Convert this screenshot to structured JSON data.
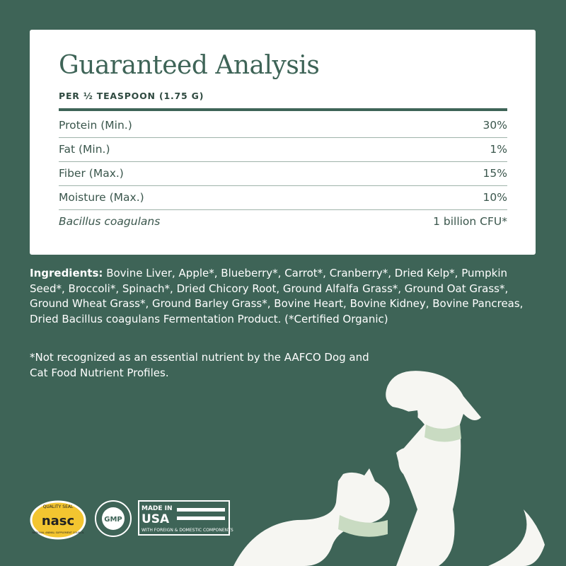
{
  "header": {
    "title": "Guaranteed Analysis",
    "subtitle": "PER ½ TEASPOON (1.75 G)"
  },
  "table": {
    "rows": [
      [
        "Protein (Min.)",
        "30%"
      ],
      [
        "Fat (Min.)",
        "1%"
      ],
      [
        "Fiber (Max.)",
        "15%"
      ],
      [
        "Moisture (Max.)",
        "10%"
      ],
      [
        "Bacillus coagulans",
        "1 billion CFU*"
      ]
    ]
  },
  "ingredients": {
    "label": "Ingredients:",
    "text": "Bovine Liver,  Apple*, Blueberry*, Carrot*, Cranberry*, Dried Kelp*, Pumpkin Seed*, Broccoli*, Spinach*, Dried Chicory Root, Ground Alfalfa Grass*, Ground Oat Grass*, Ground Wheat Grass*, Ground Barley Grass*, Bovine Heart, Bovine Kidney, Bovine Pancreas, Dried Bacillus coagulans Fermentation Product. (*Certified Organic)"
  },
  "footnote": "*Not recognized as an essential nutrient by the AAFCO Dog and Cat Food Nutrient Profiles.",
  "badges": {
    "nasc": {
      "top": "QUALITY SEAL",
      "name": "nasc",
      "bottom": "NATIONAL ANIMAL SUPPLEMENT COUNCIL"
    },
    "gmp": {
      "name": "GMP"
    },
    "usa": {
      "line1": "MADE IN",
      "line2": "USA",
      "line3": "WITH FOREIGN & DOMESTIC COMPONENTS"
    }
  }
}
